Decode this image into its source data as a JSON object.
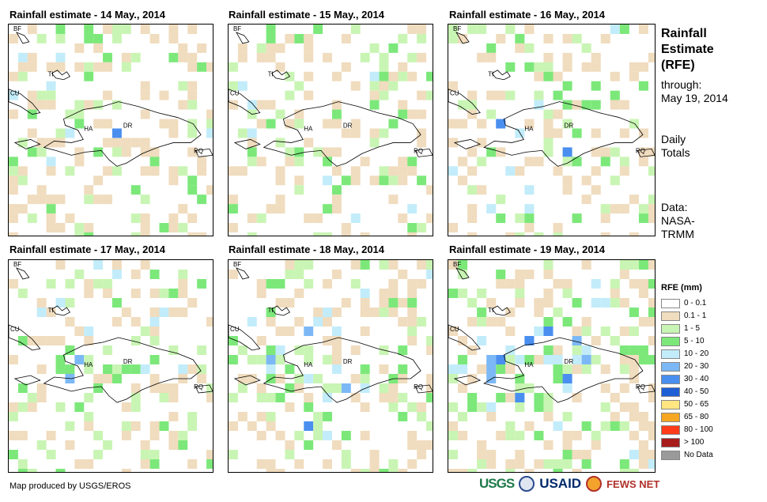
{
  "panels": [
    {
      "title": "Rainfall estimate - 14 May., 2014",
      "labels": [
        "BF",
        "TI",
        "CU",
        "HA",
        "DR",
        "RQ"
      ]
    },
    {
      "title": "Rainfall estimate - 15 May., 2014",
      "labels": [
        "BF",
        "TI",
        "CU",
        "HA",
        "DR",
        "RQ"
      ]
    },
    {
      "title": "Rainfall estimate - 16 May., 2014",
      "labels": [
        "BF",
        "TI",
        "CU",
        "HA",
        "DR",
        "RQ"
      ]
    },
    {
      "title": "Rainfall estimate - 17 May., 2014",
      "labels": [
        "BF",
        "TI",
        "CU",
        "HA",
        "DR",
        "RQ"
      ]
    },
    {
      "title": "Rainfall estimate - 18 May., 2014",
      "labels": [
        "BF",
        "TI",
        "CU",
        "HA",
        "DR",
        "RQ"
      ]
    },
    {
      "title": "Rainfall estimate - 19 May., 2014",
      "labels": [
        "BF",
        "TI",
        "CU",
        "HA",
        "DR",
        "RQ"
      ]
    }
  ],
  "sidebar": {
    "title_lines": [
      "Rainfall",
      "Estimate",
      "(RFE)"
    ],
    "through_label": "through:",
    "through_date": "May 19, 2014",
    "daily_lines": [
      "Daily",
      "Totals"
    ],
    "data_lines": [
      "Data:",
      "NASA-",
      "TRMM"
    ]
  },
  "legend": {
    "title": "RFE (mm)",
    "items": [
      {
        "label": "0 - 0.1",
        "color": "#ffffff"
      },
      {
        "label": "0.1 - 1",
        "color": "#f0dcbe"
      },
      {
        "label": "1 - 5",
        "color": "#c9f5b4"
      },
      {
        "label": "5 - 10",
        "color": "#7ce87a"
      },
      {
        "label": "10 - 20",
        "color": "#c2ecfa"
      },
      {
        "label": "20 - 30",
        "color": "#7cb8f5"
      },
      {
        "label": "30 - 40",
        "color": "#4a8ff0"
      },
      {
        "label": "40 - 50",
        "color": "#1f5fd6"
      },
      {
        "label": "50 - 65",
        "color": "#ffe680"
      },
      {
        "label": "65 - 80",
        "color": "#f5a623"
      },
      {
        "label": "80 - 100",
        "color": "#ff3b1a"
      },
      {
        "label": "> 100",
        "color": "#a81c1c"
      },
      {
        "label": "No Data",
        "color": "#9a9a9a"
      }
    ]
  },
  "credit": "Map produced by USGS/EROS",
  "logos": {
    "usgs": "USGS",
    "usaid": "USAID",
    "fews": "FEWS NET"
  }
}
